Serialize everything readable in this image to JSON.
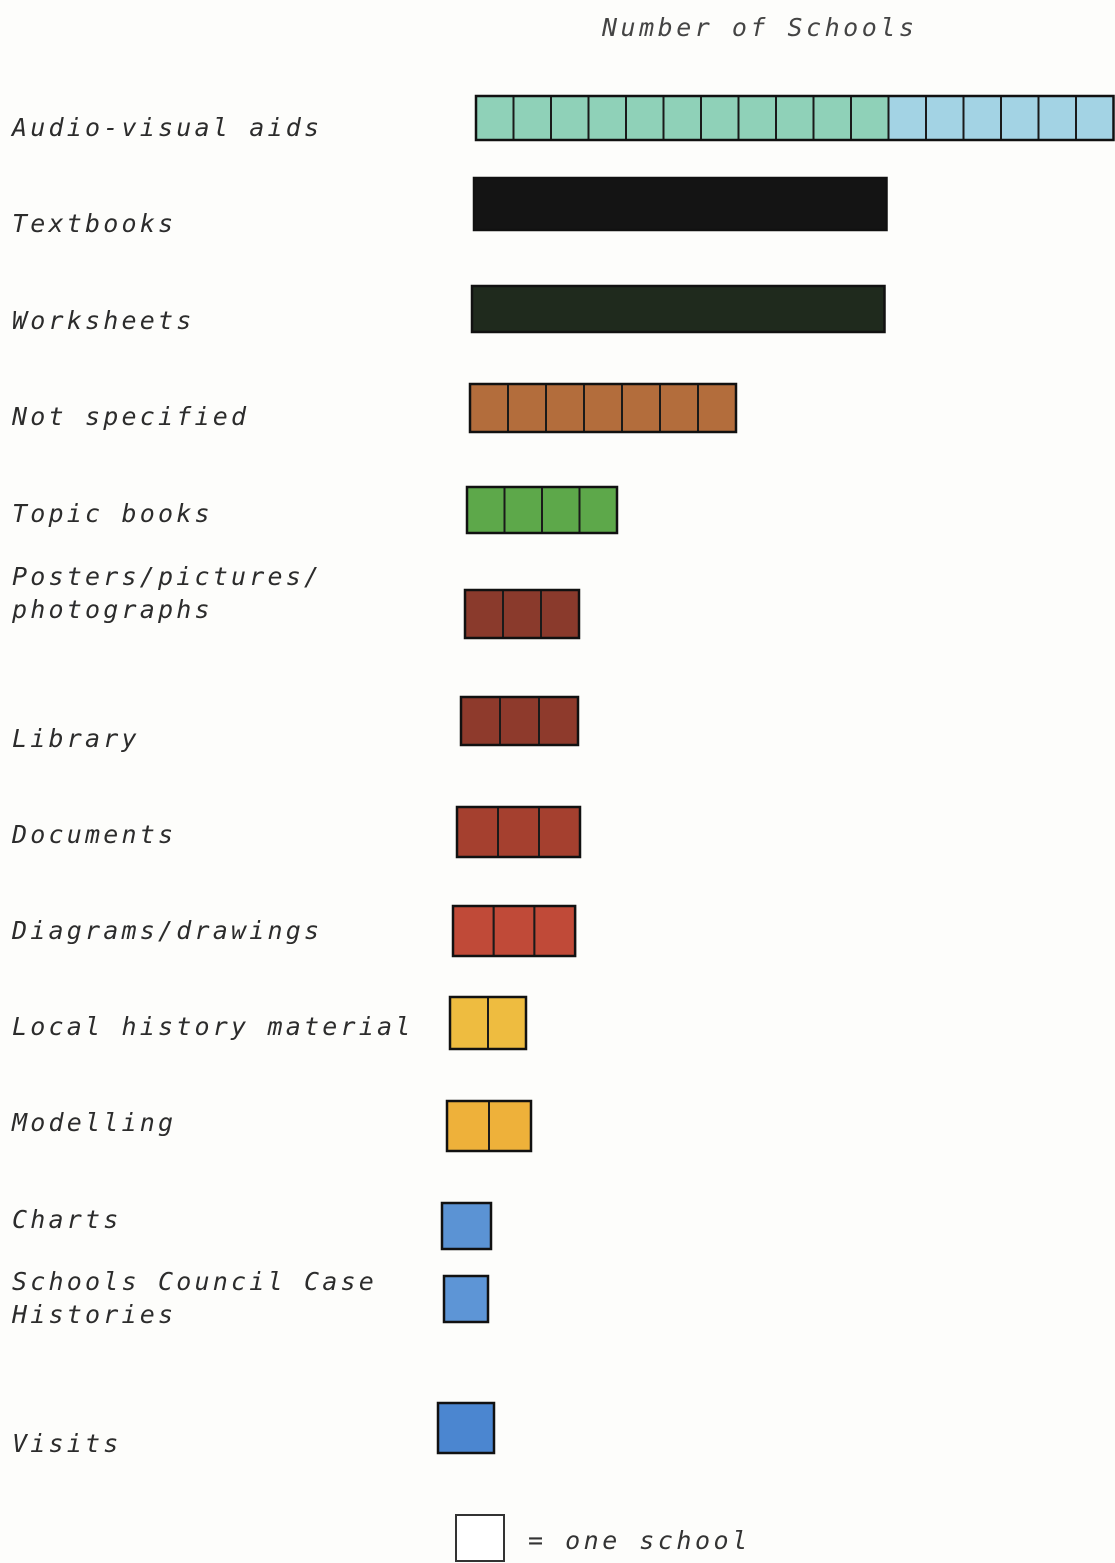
{
  "chart_data": {
    "type": "bar",
    "orientation": "horizontal",
    "title": "Number of Schools",
    "xlabel": "",
    "ylabel": "",
    "grid": false,
    "categories": [
      "Audio-visual aids",
      "Textbooks",
      "Worksheets",
      "Not specified",
      "Topic books",
      "Posters/pictures/ photographs",
      "Library",
      "Documents",
      "Diagrams/drawings",
      "Local history material",
      "Modelling",
      "Charts",
      "Schools Council Case Histories",
      "Visits"
    ],
    "category_lines": [
      [
        "Audio-visual aids"
      ],
      [
        "Textbooks"
      ],
      [
        "Worksheets"
      ],
      [
        "Not specified"
      ],
      [
        "Topic books"
      ],
      [
        "Posters/pictures/",
        "photographs"
      ],
      [
        "Library"
      ],
      [
        "Documents"
      ],
      [
        "Diagrams/drawings"
      ],
      [
        "Local history material"
      ],
      [
        "Modelling"
      ],
      [
        "Charts"
      ],
      [
        "Schools Council Case",
        "Histories"
      ],
      [
        "Visits"
      ]
    ],
    "values": [
      17,
      11,
      11,
      7,
      4,
      3,
      3,
      3,
      3,
      2,
      2,
      1,
      1,
      1
    ],
    "colors": [
      [
        "#8fd1b8",
        "#a3d3e4"
      ],
      "#141414",
      "#1f2a1d",
      "#b36d3c",
      "#5da84a",
      "#8a3a2c",
      "#8e3a2c",
      "#a5402f",
      "#c04a38",
      "#eebc40",
      "#eeb13a",
      "#5b93d4",
      "#5d95d6",
      "#4b86d0"
    ],
    "split_after_units": 11,
    "legend": {
      "unit_label": "= one school",
      "placement": "bottom"
    }
  }
}
